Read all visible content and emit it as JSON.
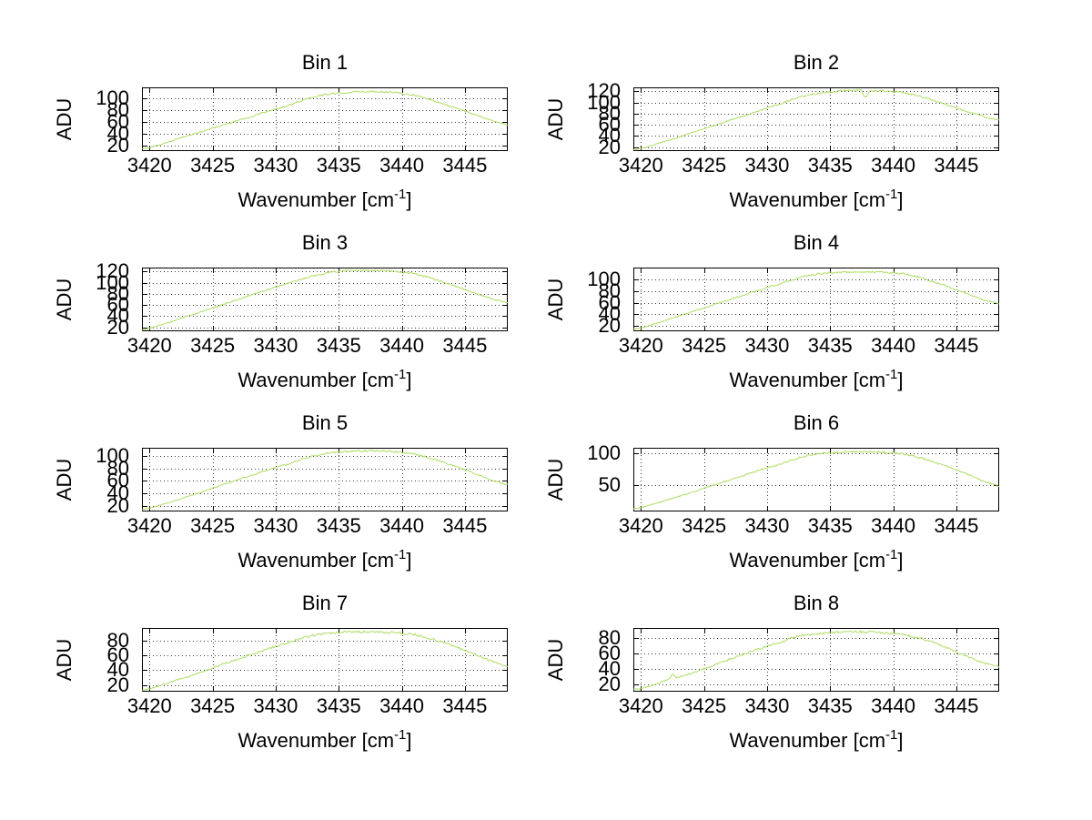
{
  "figure": {
    "background": "#ffffff",
    "line_color": "#aedd62",
    "grid_color": "#3a3a3a",
    "axis_color": "#000000",
    "ylabel": "ADU",
    "xlabel_pre": "Wavenumber [cm",
    "xlabel_sup": "-1",
    "xlabel_post": "]"
  },
  "chart_data": [
    {
      "type": "line",
      "title": "Bin 1",
      "xlabel": "Wavenumber [cm^-1]",
      "ylabel": "ADU",
      "xlim": [
        3419.4,
        3448.4
      ],
      "ylim": [
        11,
        119
      ],
      "xticks": [
        3420,
        3425,
        3430,
        3435,
        3440,
        3445
      ],
      "yticks": [
        20,
        40,
        60,
        80,
        100
      ],
      "grid": true,
      "legend": null,
      "line_color": "#aedd62",
      "noise": 1.2,
      "points": [
        [
          3419.4,
          14
        ],
        [
          3420,
          17
        ],
        [
          3421,
          23
        ],
        [
          3422,
          30
        ],
        [
          3423,
          37
        ],
        [
          3424,
          43
        ],
        [
          3425,
          50
        ],
        [
          3426,
          56
        ],
        [
          3427,
          63
        ],
        [
          3428,
          69
        ],
        [
          3429,
          76
        ],
        [
          3430,
          82
        ],
        [
          3431,
          88
        ],
        [
          3432,
          96
        ],
        [
          3433,
          103
        ],
        [
          3434,
          107
        ],
        [
          3435,
          109
        ],
        [
          3436,
          111
        ],
        [
          3437,
          112
        ],
        [
          3438,
          112
        ],
        [
          3439,
          111
        ],
        [
          3440,
          109
        ],
        [
          3441,
          106
        ],
        [
          3442,
          100
        ],
        [
          3443,
          93
        ],
        [
          3444,
          86
        ],
        [
          3445,
          79
        ],
        [
          3446,
          71
        ],
        [
          3447,
          64
        ],
        [
          3448.4,
          55
        ]
      ]
    },
    {
      "type": "line",
      "title": "Bin 2",
      "xlabel": "Wavenumber [cm^-1]",
      "ylabel": "ADU",
      "xlim": [
        3419.4,
        3448.4
      ],
      "ylim": [
        13,
        127
      ],
      "xticks": [
        3420,
        3425,
        3430,
        3435,
        3440,
        3445
      ],
      "yticks": [
        20,
        40,
        60,
        80,
        100,
        120
      ],
      "grid": true,
      "legend": null,
      "line_color": "#aedd62",
      "noise": 1.2,
      "points": [
        [
          3419.4,
          15
        ],
        [
          3420,
          17
        ],
        [
          3421,
          24
        ],
        [
          3422,
          31
        ],
        [
          3423,
          38
        ],
        [
          3424,
          46
        ],
        [
          3425,
          53
        ],
        [
          3426,
          60
        ],
        [
          3427,
          68
        ],
        [
          3428,
          75
        ],
        [
          3429,
          83
        ],
        [
          3430,
          90
        ],
        [
          3431,
          97
        ],
        [
          3432,
          105
        ],
        [
          3433,
          112
        ],
        [
          3434,
          116
        ],
        [
          3435,
          119
        ],
        [
          3436,
          121
        ],
        [
          3437,
          122
        ],
        [
          3437.5,
          121
        ],
        [
          3437.8,
          107
        ],
        [
          3438.1,
          120
        ],
        [
          3439,
          121
        ],
        [
          3440,
          120
        ],
        [
          3441,
          117
        ],
        [
          3442,
          112
        ],
        [
          3443,
          105
        ],
        [
          3444,
          98
        ],
        [
          3445,
          90
        ],
        [
          3446,
          83
        ],
        [
          3447,
          76
        ],
        [
          3448.4,
          68
        ]
      ]
    },
    {
      "type": "line",
      "title": "Bin 3",
      "xlabel": "Wavenumber [cm^-1]",
      "ylabel": "ADU",
      "xlim": [
        3419.4,
        3448.4
      ],
      "ylim": [
        13,
        127
      ],
      "xticks": [
        3420,
        3425,
        3430,
        3435,
        3440,
        3445
      ],
      "yticks": [
        20,
        40,
        60,
        80,
        100,
        120
      ],
      "grid": true,
      "legend": null,
      "line_color": "#aedd62",
      "noise": 1.2,
      "points": [
        [
          3419.4,
          15
        ],
        [
          3420,
          18
        ],
        [
          3421,
          25
        ],
        [
          3422,
          32
        ],
        [
          3423,
          40
        ],
        [
          3424,
          47
        ],
        [
          3425,
          55
        ],
        [
          3426,
          62
        ],
        [
          3427,
          70
        ],
        [
          3428,
          77
        ],
        [
          3429,
          85
        ],
        [
          3430,
          92
        ],
        [
          3431,
          99
        ],
        [
          3432,
          106
        ],
        [
          3433,
          112
        ],
        [
          3434,
          117
        ],
        [
          3435,
          120
        ],
        [
          3436,
          122
        ],
        [
          3437,
          122
        ],
        [
          3438,
          122
        ],
        [
          3439,
          121
        ],
        [
          3440,
          119
        ],
        [
          3441,
          116
        ],
        [
          3442,
          110
        ],
        [
          3443,
          103
        ],
        [
          3444,
          96
        ],
        [
          3445,
          88
        ],
        [
          3446,
          80
        ],
        [
          3447,
          72
        ],
        [
          3448.4,
          64
        ]
      ]
    },
    {
      "type": "line",
      "title": "Bin 4",
      "xlabel": "Wavenumber [cm^-1]",
      "ylabel": "ADU",
      "xlim": [
        3419.4,
        3448.4
      ],
      "ylim": [
        11,
        120
      ],
      "xticks": [
        3420,
        3425,
        3430,
        3435,
        3440,
        3445
      ],
      "yticks": [
        20,
        40,
        60,
        80,
        100
      ],
      "grid": true,
      "legend": null,
      "line_color": "#aedd62",
      "noise": 1.2,
      "points": [
        [
          3419.4,
          14
        ],
        [
          3420,
          16
        ],
        [
          3421,
          23
        ],
        [
          3422,
          30
        ],
        [
          3423,
          37
        ],
        [
          3424,
          44
        ],
        [
          3425,
          51
        ],
        [
          3426,
          58
        ],
        [
          3427,
          65
        ],
        [
          3428,
          72
        ],
        [
          3429,
          79
        ],
        [
          3430,
          86
        ],
        [
          3431,
          92
        ],
        [
          3432,
          99
        ],
        [
          3433,
          105
        ],
        [
          3434,
          109
        ],
        [
          3435,
          111
        ],
        [
          3436,
          112
        ],
        [
          3437,
          112
        ],
        [
          3438,
          113
        ],
        [
          3439,
          112
        ],
        [
          3440,
          111
        ],
        [
          3441,
          109
        ],
        [
          3442,
          104
        ],
        [
          3443,
          97
        ],
        [
          3444,
          90
        ],
        [
          3445,
          82
        ],
        [
          3446,
          74
        ],
        [
          3447,
          66
        ],
        [
          3448.4,
          58
        ]
      ]
    },
    {
      "type": "line",
      "title": "Bin 5",
      "xlabel": "Wavenumber [cm^-1]",
      "ylabel": "ADU",
      "xlim": [
        3419.4,
        3448.4
      ],
      "ylim": [
        11,
        113
      ],
      "xticks": [
        3420,
        3425,
        3430,
        3435,
        3440,
        3445
      ],
      "yticks": [
        20,
        40,
        60,
        80,
        100
      ],
      "grid": true,
      "legend": null,
      "line_color": "#aedd62",
      "noise": 1.2,
      "points": [
        [
          3419.4,
          14
        ],
        [
          3420,
          16
        ],
        [
          3421,
          22
        ],
        [
          3422,
          28
        ],
        [
          3423,
          35
        ],
        [
          3424,
          41
        ],
        [
          3425,
          48
        ],
        [
          3426,
          55
        ],
        [
          3427,
          62
        ],
        [
          3428,
          68
        ],
        [
          3429,
          75
        ],
        [
          3430,
          81
        ],
        [
          3431,
          87
        ],
        [
          3432,
          94
        ],
        [
          3433,
          100
        ],
        [
          3434,
          104
        ],
        [
          3435,
          106
        ],
        [
          3436,
          107
        ],
        [
          3437,
          108
        ],
        [
          3438,
          108
        ],
        [
          3439,
          107
        ],
        [
          3440,
          106
        ],
        [
          3441,
          103
        ],
        [
          3442,
          98
        ],
        [
          3443,
          92
        ],
        [
          3444,
          85
        ],
        [
          3445,
          78
        ],
        [
          3446,
          70
        ],
        [
          3447,
          62
        ],
        [
          3448.4,
          54
        ]
      ]
    },
    {
      "type": "line",
      "title": "Bin 6",
      "xlabel": "Wavenumber [cm^-1]",
      "ylabel": "ADU",
      "xlim": [
        3419.4,
        3448.4
      ],
      "ylim": [
        8,
        109
      ],
      "xticks": [
        3420,
        3425,
        3430,
        3435,
        3440,
        3445
      ],
      "yticks": [
        50,
        100
      ],
      "grid": true,
      "legend": null,
      "line_color": "#aedd62",
      "noise": 1.2,
      "points": [
        [
          3419.4,
          12
        ],
        [
          3420,
          14
        ],
        [
          3421,
          20
        ],
        [
          3422,
          26
        ],
        [
          3423,
          32
        ],
        [
          3424,
          38
        ],
        [
          3425,
          45
        ],
        [
          3426,
          51
        ],
        [
          3427,
          58
        ],
        [
          3428,
          64
        ],
        [
          3429,
          71
        ],
        [
          3430,
          77
        ],
        [
          3431,
          83
        ],
        [
          3432,
          90
        ],
        [
          3433,
          96
        ],
        [
          3434,
          100
        ],
        [
          3435,
          101
        ],
        [
          3436,
          102
        ],
        [
          3437,
          103
        ],
        [
          3438,
          103
        ],
        [
          3439,
          102
        ],
        [
          3440,
          101
        ],
        [
          3441,
          99
        ],
        [
          3442,
          94
        ],
        [
          3443,
          88
        ],
        [
          3444,
          81
        ],
        [
          3445,
          74
        ],
        [
          3446,
          66
        ],
        [
          3447,
          57
        ],
        [
          3448.4,
          48
        ]
      ]
    },
    {
      "type": "line",
      "title": "Bin 7",
      "xlabel": "Wavenumber [cm^-1]",
      "ylabel": "ADU",
      "xlim": [
        3419.4,
        3448.4
      ],
      "ylim": [
        11,
        97
      ],
      "xticks": [
        3420,
        3425,
        3430,
        3435,
        3440,
        3445
      ],
      "yticks": [
        20,
        40,
        60,
        80
      ],
      "grid": true,
      "legend": null,
      "line_color": "#aedd62",
      "noise": 1.2,
      "points": [
        [
          3419.4,
          13
        ],
        [
          3420,
          15
        ],
        [
          3421,
          20
        ],
        [
          3422,
          26
        ],
        [
          3423,
          31
        ],
        [
          3424,
          37
        ],
        [
          3425,
          43
        ],
        [
          3426,
          49
        ],
        [
          3427,
          55
        ],
        [
          3428,
          61
        ],
        [
          3429,
          67
        ],
        [
          3430,
          72
        ],
        [
          3431,
          77
        ],
        [
          3432,
          83
        ],
        [
          3433,
          87
        ],
        [
          3434,
          90
        ],
        [
          3435,
          91
        ],
        [
          3436,
          92
        ],
        [
          3437,
          92
        ],
        [
          3438,
          92
        ],
        [
          3439,
          91
        ],
        [
          3440,
          90
        ],
        [
          3441,
          88
        ],
        [
          3442,
          84
        ],
        [
          3443,
          79
        ],
        [
          3444,
          73
        ],
        [
          3445,
          67
        ],
        [
          3446,
          60
        ],
        [
          3447,
          53
        ],
        [
          3448.4,
          45
        ]
      ]
    },
    {
      "type": "line",
      "title": "Bin 8",
      "xlabel": "Wavenumber [cm^-1]",
      "ylabel": "ADU",
      "xlim": [
        3419.4,
        3448.4
      ],
      "ylim": [
        10,
        93
      ],
      "xticks": [
        3420,
        3425,
        3430,
        3435,
        3440,
        3445
      ],
      "yticks": [
        20,
        40,
        60,
        80
      ],
      "grid": true,
      "legend": null,
      "line_color": "#aedd62",
      "noise": 1.2,
      "points": [
        [
          3419.4,
          13
        ],
        [
          3420,
          14
        ],
        [
          3421,
          19
        ],
        [
          3422,
          25
        ],
        [
          3422.3,
          28
        ],
        [
          3422.5,
          33
        ],
        [
          3422.8,
          28
        ],
        [
          3423,
          29
        ],
        [
          3424,
          34
        ],
        [
          3425,
          40
        ],
        [
          3426,
          46
        ],
        [
          3427,
          52
        ],
        [
          3428,
          58
        ],
        [
          3429,
          64
        ],
        [
          3430,
          69
        ],
        [
          3431,
          74
        ],
        [
          3432,
          80
        ],
        [
          3433,
          84
        ],
        [
          3434,
          86
        ],
        [
          3435,
          87
        ],
        [
          3436,
          88
        ],
        [
          3437,
          88
        ],
        [
          3438,
          88
        ],
        [
          3439,
          87
        ],
        [
          3440,
          86
        ],
        [
          3441,
          84
        ],
        [
          3442,
          80
        ],
        [
          3443,
          75
        ],
        [
          3444,
          69
        ],
        [
          3445,
          62
        ],
        [
          3446,
          55
        ],
        [
          3447,
          48
        ],
        [
          3448.4,
          42
        ]
      ]
    }
  ]
}
